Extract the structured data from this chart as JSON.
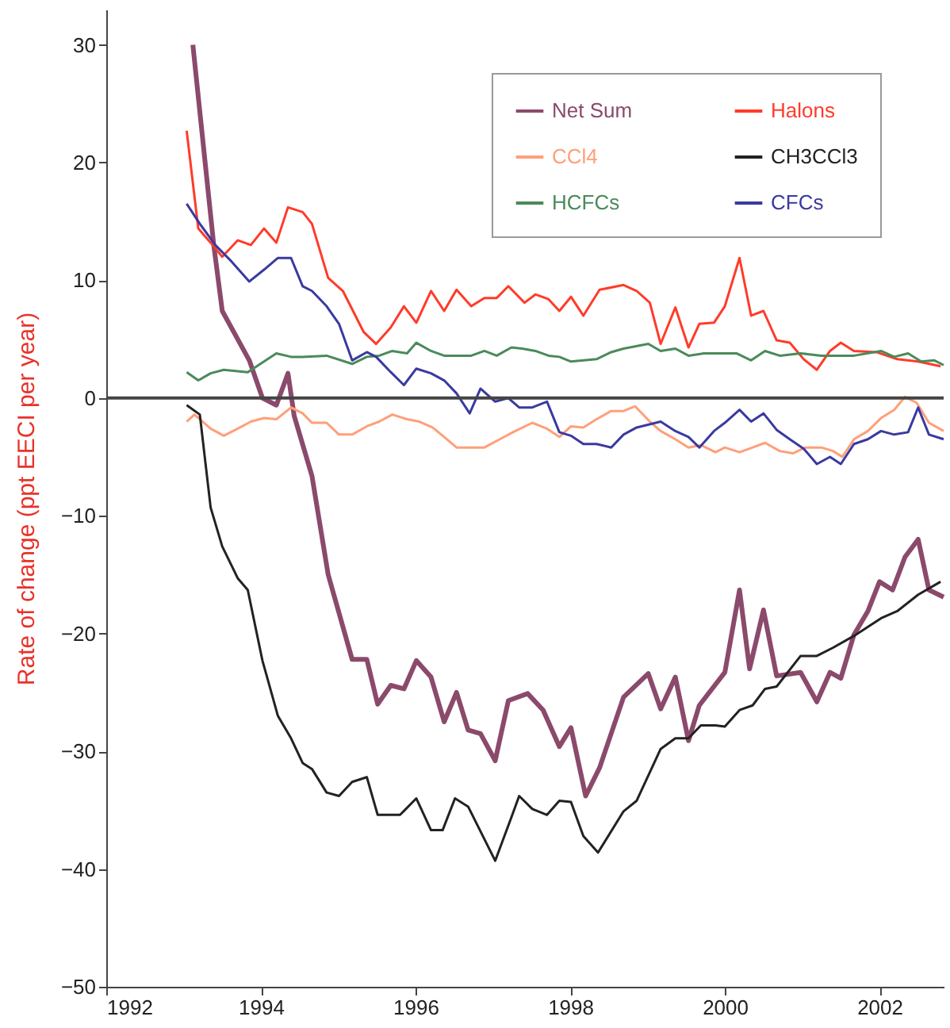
{
  "chart_data": {
    "type": "line",
    "ylabel": "Rate of change  (ppt EECI per year)",
    "xlim": [
      1992,
      2002.83
    ],
    "xticks": [
      1992,
      1994,
      1996,
      1998,
      2000,
      2002
    ],
    "ylim": [
      -50,
      33
    ],
    "yticks": [
      -50,
      -40,
      -30,
      -20,
      -10,
      0,
      10,
      20,
      30
    ],
    "grid": false,
    "legend": "top right",
    "marker": "none",
    "line_style": "solid",
    "ref_lines": [
      {
        "axis": "y",
        "value": 0,
        "color": "#444444"
      }
    ],
    "series": [
      {
        "name": "Net Sum",
        "color": "#8b4a6b",
        "x": [
          1993.12,
          1993.39,
          1993.5,
          1993.85,
          1994.02,
          1994.2,
          1994.35,
          1994.43,
          1994.66,
          1994.87,
          1995.18,
          1995.37,
          1995.51,
          1995.68,
          1995.85,
          1996.01,
          1996.2,
          1996.37,
          1996.53,
          1996.68,
          1996.84,
          1997.03,
          1997.2,
          1997.45,
          1997.65,
          1997.86,
          1998.01,
          1998.2,
          1998.38,
          1998.69,
          1999.01,
          1999.17,
          1999.36,
          1999.53,
          1999.67,
          2000.0,
          2000.19,
          2000.32,
          2000.5,
          2000.67,
          2000.98,
          2001.19,
          2001.36,
          2001.5,
          2001.67,
          2001.85,
          2002.0,
          2002.17,
          2002.33,
          2002.5,
          2002.64,
          2002.83
        ],
        "values": [
          30,
          13,
          7.4,
          3.2,
          0,
          -0.6,
          2.1,
          -1.5,
          -6.6,
          -15,
          -22.2,
          -22.2,
          -26,
          -24.4,
          -24.7,
          -22.3,
          -23.7,
          -27.5,
          -25,
          -28.2,
          -28.5,
          -30.8,
          -25.7,
          -25.1,
          -26.5,
          -29.6,
          -28,
          -33.8,
          -31.4,
          -25.4,
          -23.4,
          -26.4,
          -23.7,
          -29.1,
          -26.1,
          -23.3,
          -16.3,
          -23,
          -18,
          -23.6,
          -23.3,
          -25.8,
          -23.3,
          -23.8,
          -20.1,
          -18.1,
          -15.6,
          -16.3,
          -13.5,
          -12,
          -16.3,
          -16.9
        ]
      },
      {
        "name": "Halons",
        "color": "#ff3b2a",
        "x": [
          1993.04,
          1993.19,
          1993.35,
          1993.5,
          1993.7,
          1993.87,
          1994.04,
          1994.2,
          1994.35,
          1994.54,
          1994.66,
          1994.87,
          1995.06,
          1995.33,
          1995.49,
          1995.68,
          1995.85,
          1996.01,
          1996.2,
          1996.37,
          1996.53,
          1996.72,
          1996.89,
          1997.05,
          1997.2,
          1997.41,
          1997.55,
          1997.72,
          1997.86,
          1998.01,
          1998.17,
          1998.38,
          1998.69,
          1998.86,
          1999.03,
          1999.17,
          1999.36,
          1999.53,
          1999.67,
          1999.86,
          2000.0,
          2000.19,
          2000.34,
          2000.5,
          2000.67,
          2000.84,
          2001.02,
          2001.19,
          2001.36,
          2001.5,
          2001.67,
          2001.96,
          2002.23,
          2002.5,
          2002.79
        ],
        "values": [
          22.7,
          14.4,
          13.2,
          12,
          13.4,
          13,
          14.4,
          13.2,
          16.2,
          15.8,
          14.8,
          10.2,
          9.1,
          5.6,
          4.6,
          6,
          7.8,
          6.4,
          9.1,
          7.4,
          9.2,
          7.8,
          8.5,
          8.5,
          9.5,
          8.1,
          8.8,
          8.4,
          7.4,
          8.6,
          7,
          9.2,
          9.6,
          9.1,
          8.1,
          4.6,
          7.7,
          4.3,
          6.3,
          6.4,
          7.8,
          11.9,
          7,
          7.4,
          4.9,
          4.7,
          3.3,
          2.4,
          4,
          4.7,
          4,
          3.9,
          3.3,
          3.1,
          2.7
        ]
      },
      {
        "name": "CCl4",
        "color": "#ff9f7a",
        "x": [
          1993.04,
          1993.14,
          1993.35,
          1993.52,
          1993.7,
          1993.87,
          1994.04,
          1994.2,
          1994.39,
          1994.54,
          1994.66,
          1994.85,
          1995.01,
          1995.18,
          1995.37,
          1995.53,
          1995.7,
          1995.89,
          1996.05,
          1996.22,
          1996.37,
          1996.53,
          1996.72,
          1996.89,
          1997.09,
          1997.26,
          1997.51,
          1997.7,
          1997.86,
          1998.01,
          1998.17,
          1998.34,
          1998.53,
          1998.69,
          1998.84,
          1999.03,
          1999.17,
          1999.36,
          1999.53,
          1999.69,
          1999.88,
          2000.0,
          2000.19,
          2000.36,
          2000.52,
          2000.71,
          2000.88,
          2001.04,
          2001.25,
          2001.4,
          2001.52,
          2001.67,
          2001.85,
          2002.02,
          2002.19,
          2002.33,
          2002.48,
          2002.64,
          2002.83
        ],
        "values": [
          -2,
          -1.4,
          -2.6,
          -3.2,
          -2.6,
          -2,
          -1.7,
          -1.8,
          -0.8,
          -1.3,
          -2.1,
          -2.1,
          -3.1,
          -3.1,
          -2.4,
          -2,
          -1.4,
          -1.8,
          -2,
          -2.5,
          -3.3,
          -4.2,
          -4.2,
          -4.2,
          -3.5,
          -2.9,
          -2.1,
          -2.6,
          -3.3,
          -2.4,
          -2.5,
          -1.8,
          -1.1,
          -1.1,
          -0.7,
          -2,
          -2.8,
          -3.5,
          -4.2,
          -4,
          -4.6,
          -4.2,
          -4.6,
          -4.2,
          -3.8,
          -4.5,
          -4.7,
          -4.2,
          -4.2,
          -4.5,
          -5,
          -3.5,
          -2.8,
          -1.7,
          -1,
          0.1,
          -0.4,
          -2.1,
          -2.8
        ]
      },
      {
        "name": "CH3CCl3",
        "color": "#222222",
        "x": [
          1993.04,
          1993.21,
          1993.35,
          1993.5,
          1993.7,
          1993.83,
          1994.02,
          1994.22,
          1994.39,
          1994.54,
          1994.66,
          1994.85,
          1995.01,
          1995.18,
          1995.37,
          1995.51,
          1995.8,
          1996.01,
          1996.2,
          1996.35,
          1996.51,
          1996.68,
          1997.03,
          1997.24,
          1997.34,
          1997.51,
          1997.7,
          1997.86,
          1998.01,
          1998.17,
          1998.36,
          1998.69,
          1998.86,
          1999.17,
          1999.36,
          1999.53,
          1999.69,
          1999.88,
          2000.0,
          2000.19,
          2000.36,
          2000.52,
          2000.67,
          2000.98,
          2001.19,
          2001.4,
          2001.67,
          2002.02,
          2002.23,
          2002.5,
          2002.79
        ],
        "values": [
          -0.6,
          -1.4,
          -9.3,
          -12.6,
          -15.3,
          -16.3,
          -22.3,
          -27,
          -28.9,
          -31,
          -31.5,
          -33.5,
          -33.8,
          -32.6,
          -32.2,
          -35.4,
          -35.4,
          -34,
          -36.7,
          -36.7,
          -34,
          -34.7,
          -39.3,
          -35.6,
          -33.8,
          -34.9,
          -35.4,
          -34.2,
          -34.3,
          -37.2,
          -38.6,
          -35.1,
          -34.2,
          -29.8,
          -28.9,
          -28.9,
          -27.8,
          -27.8,
          -27.9,
          -26.5,
          -26.1,
          -24.7,
          -24.5,
          -21.9,
          -21.9,
          -21.2,
          -20.2,
          -18.7,
          -18.1,
          -16.7,
          -15.6
        ]
      },
      {
        "name": "HCFCs",
        "color": "#4a8a5a",
        "x": [
          1993.04,
          1993.19,
          1993.35,
          1993.52,
          1993.83,
          1994.04,
          1994.2,
          1994.39,
          1994.54,
          1994.85,
          1995.18,
          1995.37,
          1995.53,
          1995.7,
          1995.89,
          1996.01,
          1996.2,
          1996.37,
          1996.72,
          1996.89,
          1997.05,
          1997.24,
          1997.38,
          1997.55,
          1997.72,
          1997.86,
          1998.01,
          1998.34,
          1998.53,
          1998.69,
          1999.01,
          1999.17,
          1999.36,
          1999.53,
          1999.73,
          2000.15,
          2000.34,
          2000.52,
          2000.71,
          2000.98,
          2001.25,
          2001.67,
          2002.02,
          2002.19,
          2002.37,
          2002.54,
          2002.71,
          2002.83
        ],
        "values": [
          2.2,
          1.5,
          2.1,
          2.4,
          2.2,
          3.1,
          3.8,
          3.5,
          3.5,
          3.6,
          2.9,
          3.5,
          3.6,
          4,
          3.8,
          4.7,
          4,
          3.6,
          3.6,
          4,
          3.6,
          4.3,
          4.2,
          4,
          3.6,
          3.5,
          3.1,
          3.3,
          3.9,
          4.2,
          4.6,
          4,
          4.2,
          3.6,
          3.8,
          3.8,
          3.2,
          4,
          3.6,
          3.8,
          3.6,
          3.6,
          4,
          3.5,
          3.8,
          3.1,
          3.2,
          2.8
        ]
      },
      {
        "name": "CFCs",
        "color": "#3a3aa0",
        "x": [
          1993.04,
          1993.21,
          1993.41,
          1993.62,
          1993.85,
          1994.04,
          1994.22,
          1994.39,
          1994.54,
          1994.66,
          1994.85,
          1995.01,
          1995.18,
          1995.37,
          1995.49,
          1995.68,
          1995.85,
          1996.01,
          1996.2,
          1996.37,
          1996.53,
          1996.7,
          1996.84,
          1997.03,
          1997.2,
          1997.34,
          1997.51,
          1997.7,
          1997.86,
          1998.01,
          1998.17,
          1998.34,
          1998.53,
          1998.69,
          1998.86,
          1999.17,
          1999.36,
          1999.53,
          1999.67,
          1999.86,
          2000.0,
          2000.19,
          2000.34,
          2000.5,
          2000.67,
          2000.84,
          2001.02,
          2001.19,
          2001.36,
          2001.5,
          2001.67,
          2001.85,
          2002.02,
          2002.19,
          2002.37,
          2002.5,
          2002.64,
          2002.83
        ],
        "values": [
          16.5,
          14.8,
          13,
          11.6,
          9.9,
          10.9,
          11.9,
          11.9,
          9.5,
          9.1,
          7.8,
          6.3,
          3.2,
          3.9,
          3.5,
          2.2,
          1.1,
          2.5,
          2.1,
          1.5,
          0.4,
          -1.3,
          0.8,
          -0.3,
          0,
          -0.8,
          -0.8,
          -0.3,
          -2.9,
          -3.2,
          -3.9,
          -3.9,
          -4.2,
          -3.1,
          -2.5,
          -2,
          -2.8,
          -3.3,
          -4.2,
          -2.8,
          -2.1,
          -1,
          -2,
          -1.3,
          -2.7,
          -3.5,
          -4.3,
          -5.6,
          -5,
          -5.6,
          -3.9,
          -3.5,
          -2.8,
          -3.1,
          -2.9,
          -0.8,
          -3.1,
          -3.5
        ]
      }
    ]
  }
}
